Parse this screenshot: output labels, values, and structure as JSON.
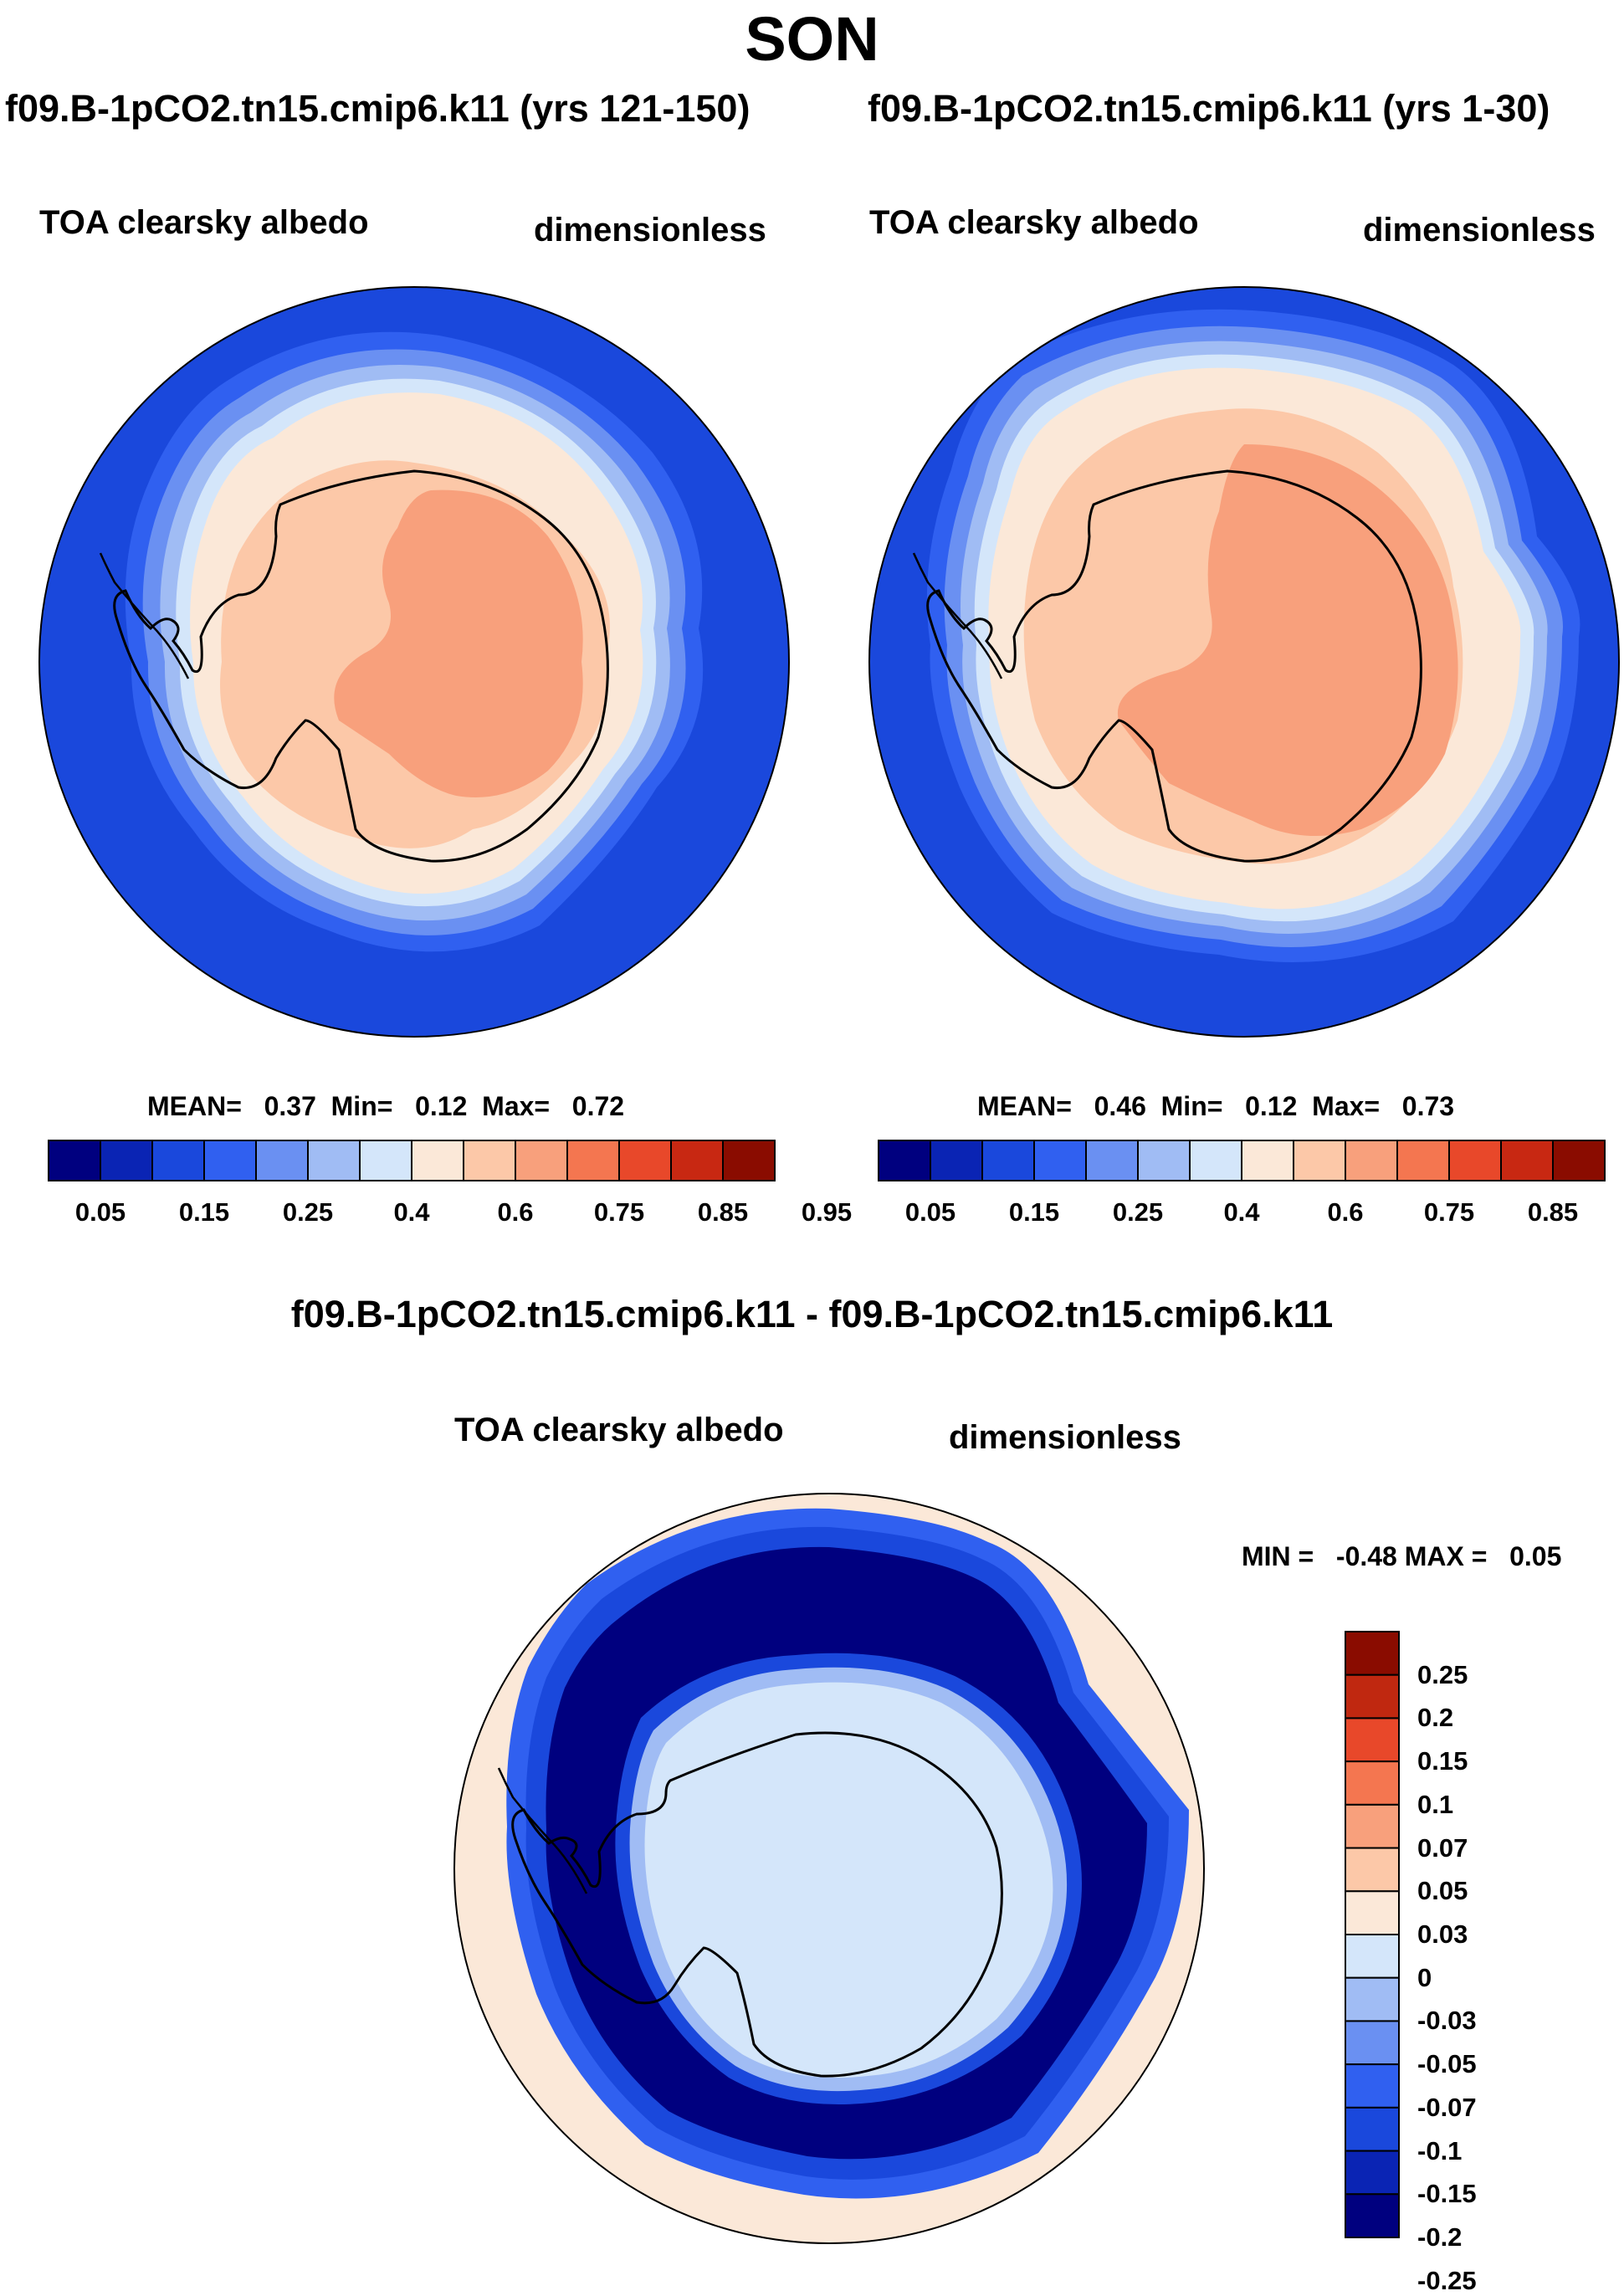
{
  "title": "SON",
  "panels": [
    {
      "run_title": "f09.B-1pCO2.tn15.cmip6.k11 (yrs 121-150)",
      "variable": "TOA clearsky albedo",
      "units": "dimensionless",
      "stats": {
        "mean_label": "MEAN=",
        "mean": "0.37",
        "min_label": "Min=",
        "min": "0.12",
        "max_label": "Max=",
        "max": "0.72"
      }
    },
    {
      "run_title": "f09.B-1pCO2.tn15.cmip6.k11 (yrs 1-30)",
      "variable": "TOA clearsky albedo",
      "units": "dimensionless",
      "stats": {
        "mean_label": "MEAN=",
        "mean": "0.46",
        "min_label": "Min=",
        "min": "0.12",
        "max_label": "Max=",
        "max": "0.73"
      }
    }
  ],
  "diff_panel": {
    "title": "f09.B-1pCO2.tn15.cmip6.k11 - f09.B-1pCO2.tn15.cmip6.k11",
    "variable": "TOA clearsky albedo",
    "units": "dimensionless",
    "stats": {
      "min_label": "MIN =",
      "min": "-0.48",
      "max_label": "MAX =",
      "max": "0.05"
    }
  },
  "colorbar_abs": {
    "labels": [
      "0.05",
      "0.15",
      "0.25",
      "0.4",
      "0.6",
      "0.75",
      "0.85",
      "0.95"
    ],
    "colors": [
      "#00007f",
      "#0a24b4",
      "#1a48dc",
      "#3060f0",
      "#6a90f2",
      "#a0bcf4",
      "#d4e6fa",
      "#fbe8d8",
      "#fcc8a8",
      "#f8a07c",
      "#f47650",
      "#e8482a",
      "#c82812",
      "#8a0c00"
    ]
  },
  "colorbar_diff": {
    "labels": [
      "0.25",
      "0.2",
      "0.15",
      "0.1",
      "0.07",
      "0.05",
      "0.03",
      "0",
      "-0.03",
      "-0.05",
      "-0.07",
      "-0.1",
      "-0.15",
      "-0.2",
      "-0.25"
    ],
    "colors": [
      "#8a0c00",
      "#c02810",
      "#e8482a",
      "#f47650",
      "#f8a07c",
      "#fcc8a8",
      "#fbe8d8",
      "#d4e6fa",
      "#a0bcf4",
      "#6a90f2",
      "#3060f0",
      "#1a48dc",
      "#0a24b4",
      "#00007f"
    ]
  }
}
